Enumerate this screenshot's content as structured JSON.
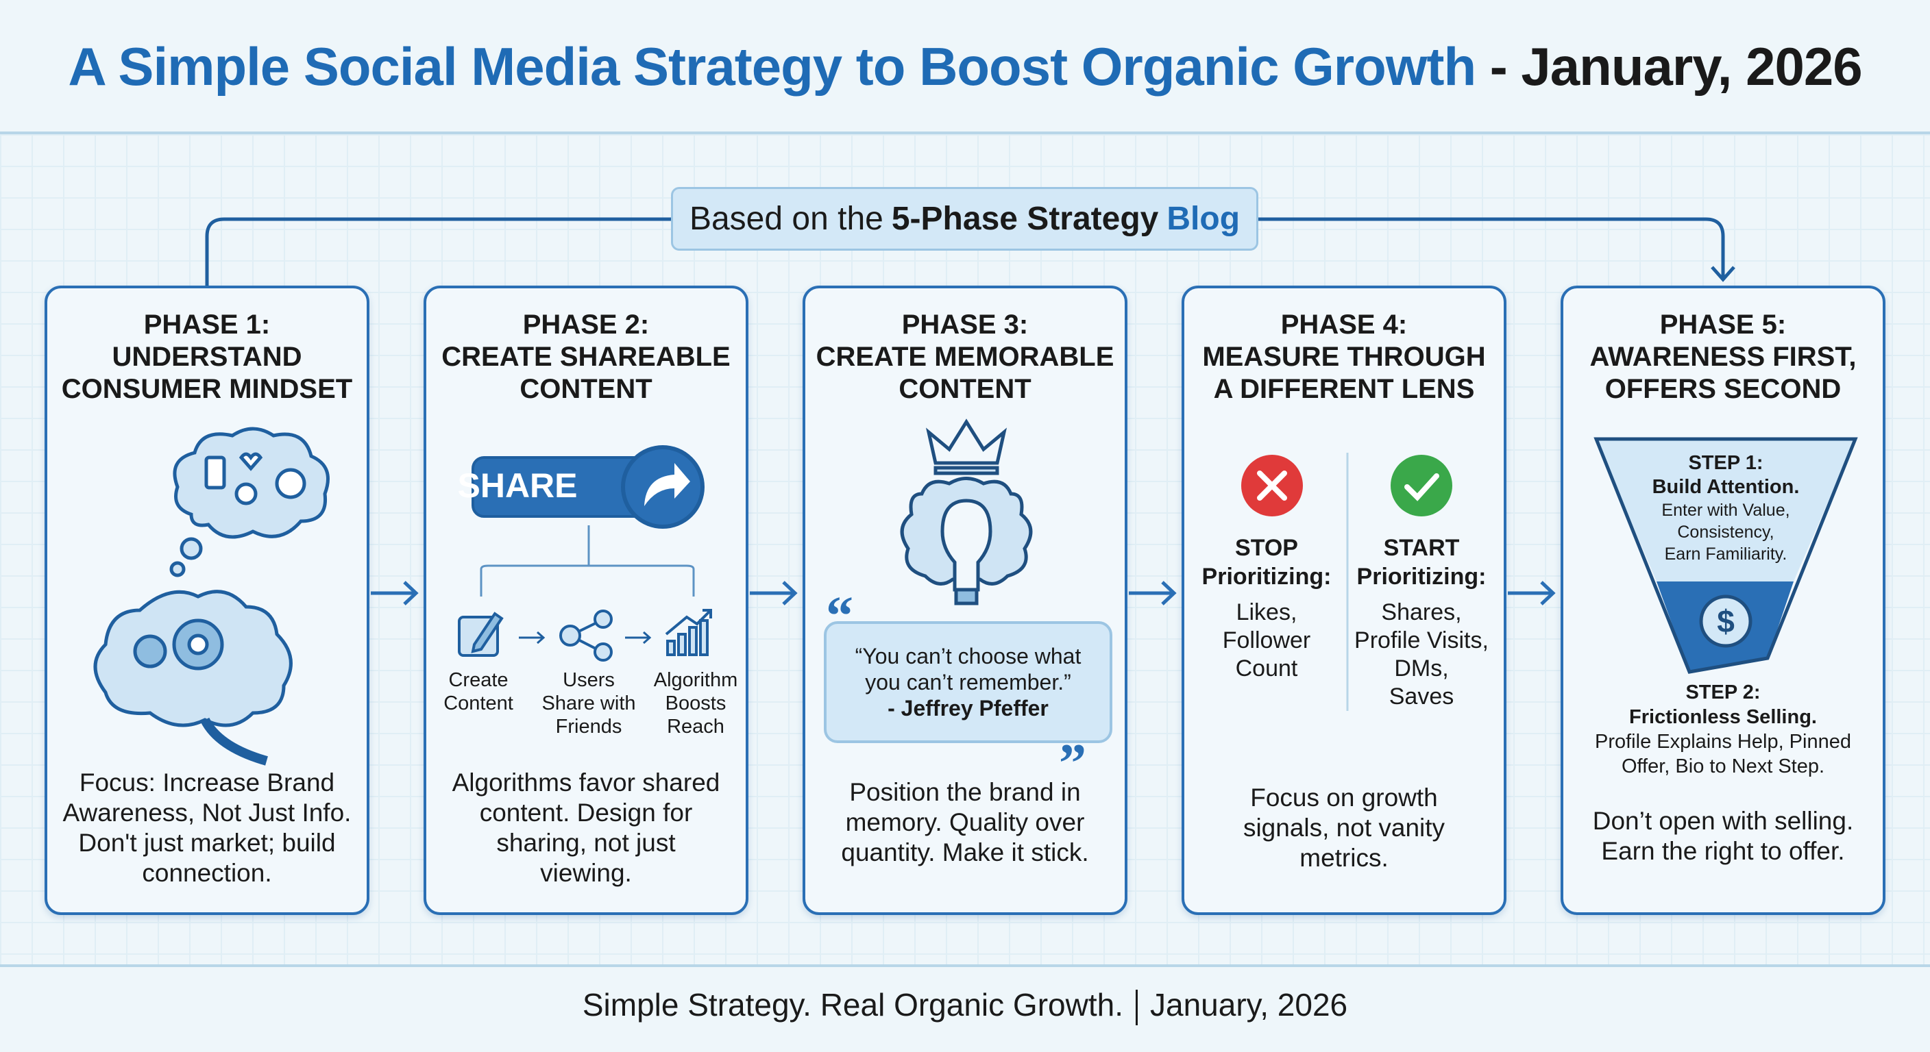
{
  "title": {
    "main": "A Simple Social Media Strategy to Boost Organic Growth",
    "date": " - January, 2026"
  },
  "banner": {
    "prefix": "Based on the",
    "bold": "5-Phase Strategy",
    "link": "Blog"
  },
  "phases": [
    {
      "heading": [
        "PHASE 1:",
        "UNDERSTAND",
        "CONSUMER MINDSET"
      ],
      "body": [
        "Focus: Increase Brand",
        "Awareness, Not Just Info.",
        "Don't just market; build",
        "connection."
      ]
    },
    {
      "heading": [
        "PHASE 2:",
        "CREATE SHAREABLE",
        "CONTENT"
      ],
      "share_label": "SHARE",
      "flow": [
        {
          "label": [
            "Create",
            "Content"
          ]
        },
        {
          "label": [
            "Users",
            "Share with",
            "Friends"
          ]
        },
        {
          "label": [
            "Algorithm",
            "Boosts",
            "Reach"
          ]
        }
      ],
      "body": [
        "Algorithms favor shared",
        "content. Design for",
        "sharing, not just",
        "viewing."
      ]
    },
    {
      "heading": [
        "PHASE 3:",
        "CREATE MEMORABLE",
        "CONTENT"
      ],
      "quote": [
        "“You can’t choose what",
        "you can’t remember.”",
        "- Jeffrey Pfeffer"
      ],
      "body": [
        "Position the brand in",
        "memory. Quality over",
        "quantity. Make it stick."
      ]
    },
    {
      "heading": [
        "PHASE 4:",
        "MEASURE THROUGH",
        "A DIFFERENT LENS"
      ],
      "stop": {
        "title": [
          "STOP",
          "Prioritizing:"
        ],
        "items": [
          "Likes,",
          "Follower",
          "Count"
        ]
      },
      "start": {
        "title": [
          "START",
          "Prioritizing:"
        ],
        "items": [
          "Shares,",
          "Profile Visits,",
          "DMs,",
          "Saves"
        ]
      },
      "body": [
        "Focus on growth",
        "signals, not vanity",
        "metrics."
      ]
    },
    {
      "heading": [
        "PHASE 5:",
        "AWARENESS FIRST,",
        "OFFERS SECOND"
      ],
      "step1": {
        "label": "STEP 1:",
        "title": "Build Attention.",
        "text": [
          "Enter with Value,",
          "Consistency,",
          "Earn Familiarity."
        ]
      },
      "step2": {
        "label": "STEP 2:",
        "title": "Frictionless Selling.",
        "text": [
          "Profile Explains Help, Pinned",
          "Offer, Bio to Next Step."
        ]
      },
      "body": [
        "Don’t open with selling.",
        "Earn the right to offer."
      ]
    }
  ],
  "footer": {
    "left": "Simple Strategy. Real Organic Growth.",
    "right": "January, 2026"
  },
  "colors": {
    "accent": "#1f6bb5",
    "stop": "#e03a3a",
    "start": "#3aa84a",
    "background": "#eef6fa"
  }
}
